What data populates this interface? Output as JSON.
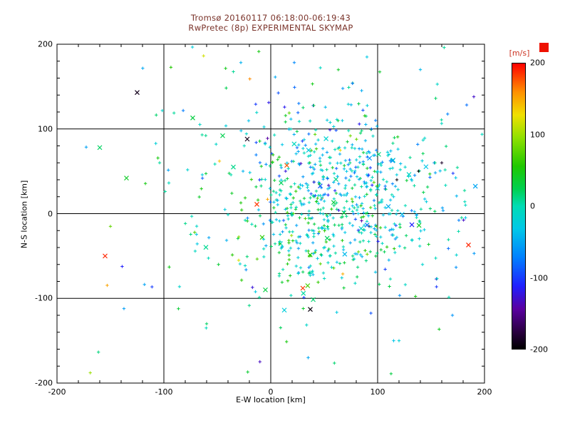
{
  "title": {
    "line1": "Tromsø 20160117 06:18:00-06:19:43",
    "line2": "RwPretec (8p) EXPERIMENTAL SKYMAP"
  },
  "colors": {
    "background": "#ffffff",
    "title_text": "#7a332a",
    "axis_text": "#000000",
    "colorbar_label_text": "#cc3322",
    "red_square": "#ee1100"
  },
  "chart_data": {
    "type": "scatter",
    "title": "Tromsø 20160117 06:18:00-06:19:43 / RwPretec (8p) EXPERIMENTAL SKYMAP",
    "xlabel": "E-W location [km]",
    "ylabel": "N-S location [km]",
    "xlim": [
      -200,
      200
    ],
    "ylim": [
      -200,
      200
    ],
    "xticks": [
      -200,
      -100,
      0,
      100,
      200
    ],
    "yticks": [
      -200,
      -100,
      0,
      100,
      200
    ],
    "grid_positions": [
      -100,
      0,
      100
    ],
    "grid": true,
    "legend_position": "none",
    "color_axis": {
      "label": "[m/s]",
      "min": -200,
      "max": 200,
      "ticks": [
        200,
        100,
        0,
        -100,
        -200
      ]
    },
    "colormap_stops": [
      {
        "t": 0.0,
        "c": "#000000"
      },
      {
        "t": 0.06,
        "c": "#2a0040"
      },
      {
        "t": 0.14,
        "c": "#5a00a0"
      },
      {
        "t": 0.22,
        "c": "#2020ff"
      },
      {
        "t": 0.32,
        "c": "#0080ff"
      },
      {
        "t": 0.42,
        "c": "#00c8e8"
      },
      {
        "t": 0.5,
        "c": "#00dcb4"
      },
      {
        "t": 0.56,
        "c": "#00d050"
      },
      {
        "t": 0.64,
        "c": "#20c800"
      },
      {
        "t": 0.74,
        "c": "#90e000"
      },
      {
        "t": 0.82,
        "c": "#f0e000"
      },
      {
        "t": 0.9,
        "c": "#ff9000"
      },
      {
        "t": 1.0,
        "c": "#ff0000"
      }
    ],
    "points_note": "points = individually readable echoes [x_km, y_km, velocity_m_s, marker]; point_clusters = dense unresolvable swarm approximated by gaussian clusters",
    "points": [
      [
        -125,
        143,
        -190,
        "x"
      ],
      [
        -160,
        78,
        20,
        "x"
      ],
      [
        -135,
        42,
        40,
        "x"
      ],
      [
        -155,
        -50,
        190,
        "x"
      ],
      [
        -150,
        -15,
        80,
        "+"
      ],
      [
        -73,
        113,
        30,
        "x"
      ],
      [
        -45,
        92,
        25,
        "x"
      ],
      [
        -48,
        62,
        140,
        "+"
      ],
      [
        -22,
        88,
        -190,
        "x"
      ],
      [
        -35,
        55,
        10,
        "x"
      ],
      [
        -13,
        11,
        185,
        "x"
      ],
      [
        -3,
        17,
        150,
        "+"
      ],
      [
        15,
        57,
        175,
        "x"
      ],
      [
        -8,
        -28,
        60,
        "x"
      ],
      [
        -30,
        -55,
        120,
        "+"
      ],
      [
        30,
        -88,
        185,
        "x"
      ],
      [
        37,
        -113,
        -195,
        "x"
      ],
      [
        -5,
        -90,
        30,
        "x"
      ],
      [
        185,
        -37,
        190,
        "x"
      ],
      [
        190,
        138,
        -130,
        "+"
      ],
      [
        160,
        60,
        -185,
        "+"
      ],
      [
        118,
        40,
        -195,
        "+"
      ],
      [
        92,
        -15,
        -190,
        "+"
      ],
      [
        65,
        75,
        130,
        "+"
      ],
      [
        48,
        18,
        160,
        "+"
      ],
      [
        12,
        -8,
        -90,
        "+"
      ],
      [
        -95,
        -63,
        45,
        "+"
      ],
      [
        170,
        -120,
        -60,
        "+"
      ],
      [
        140,
        170,
        -40,
        "+"
      ],
      [
        90,
        185,
        -30,
        "+"
      ],
      [
        -60,
        -130,
        20,
        "+"
      ],
      [
        35,
        -170,
        -50,
        "+"
      ],
      [
        120,
        -150,
        -20,
        "+"
      ]
    ],
    "point_clusters": [
      {
        "count": 420,
        "cx": 70,
        "cy": 25,
        "sx": 42,
        "sy": 40,
        "v_mean": -20,
        "v_spread": 40,
        "seed": 1
      },
      {
        "count": 200,
        "cx": 35,
        "cy": -35,
        "sx": 45,
        "sy": 40,
        "v_mean": 10,
        "v_spread": 35,
        "seed": 2
      },
      {
        "count": 110,
        "cx": 30,
        "cy": 95,
        "sx": 70,
        "sy": 45,
        "v_mean": -15,
        "v_spread": 45,
        "seed": 3
      },
      {
        "count": 90,
        "cx": 20,
        "cy": -20,
        "sx": 110,
        "sy": 100,
        "v_mean": 0,
        "v_spread": 70,
        "seed": 4
      },
      {
        "count": 40,
        "cx": 150,
        "cy": 10,
        "sx": 40,
        "sy": 70,
        "v_mean": -30,
        "v_spread": 50,
        "seed": 5
      }
    ]
  }
}
